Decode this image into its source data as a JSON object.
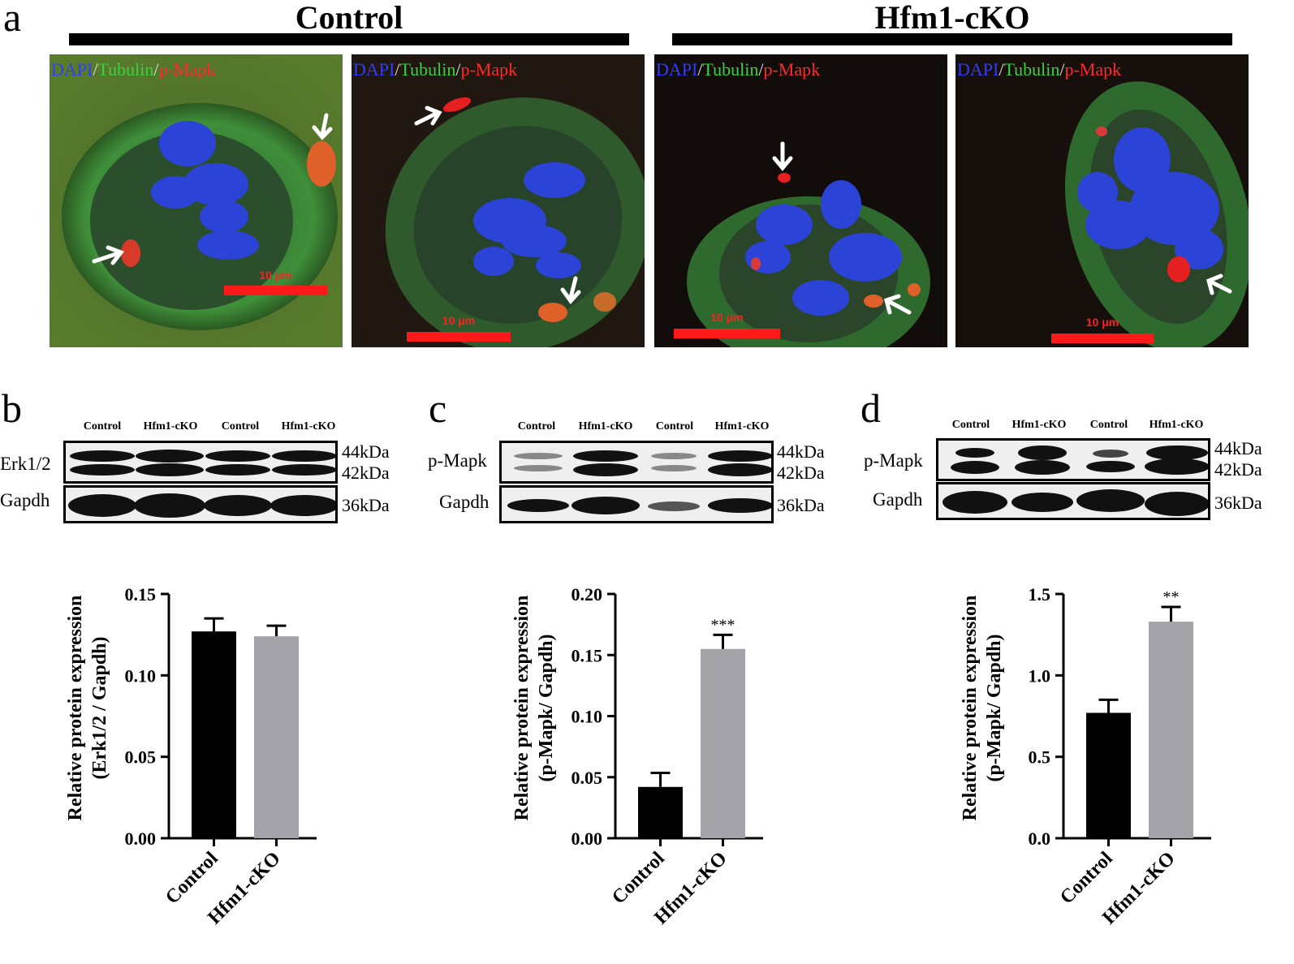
{
  "panel_letters": {
    "a": "a",
    "b": "b",
    "c": "c",
    "d": "d"
  },
  "panel_a": {
    "groups": [
      {
        "title": "Control"
      },
      {
        "title": "Hfm1-cKO"
      }
    ],
    "stain_label": {
      "dapi": "DAPI",
      "sep1": "/",
      "tubulin": "Tubulin",
      "sep2": "/",
      "pmapk": "p-Mapk"
    },
    "scale_bar_text": "10 μm",
    "images": [
      {
        "group": "Control",
        "arrows": 2
      },
      {
        "group": "Control",
        "arrows": 2
      },
      {
        "group": "Hfm1-cKO",
        "arrows": 2
      },
      {
        "group": "Hfm1-cKO",
        "arrows": 1
      }
    ]
  },
  "western_blots": [
    {
      "id": "b",
      "lanes": [
        "Control",
        "Hfm1-cKO",
        "Control",
        "Hfm1-cKO"
      ],
      "rows": [
        {
          "label": "Erk1/2",
          "mw": [
            "44kDa",
            "42kDa"
          ]
        },
        {
          "label": "Gapdh",
          "mw": [
            "36kDa"
          ]
        }
      ]
    },
    {
      "id": "c",
      "lanes": [
        "Control",
        "Hfm1-cKO",
        "Control",
        "Hfm1-cKO"
      ],
      "rows": [
        {
          "label": "p-Mapk",
          "mw": [
            "44kDa",
            "42kDa"
          ]
        },
        {
          "label": "Gapdh",
          "mw": [
            "36kDa"
          ]
        }
      ]
    },
    {
      "id": "d",
      "lanes": [
        "Control",
        "Hfm1-cKO",
        "Control",
        "Hfm1-cKO"
      ],
      "rows": [
        {
          "label": "p-Mapk",
          "mw": [
            "44kDa",
            "42kDa"
          ]
        },
        {
          "label": "Gapdh",
          "mw": [
            "36kDa"
          ]
        }
      ]
    }
  ],
  "chart_data": [
    {
      "id": "b",
      "type": "bar",
      "categories": [
        "Control",
        "Hfm1-cKO"
      ],
      "values": [
        0.127,
        0.124
      ],
      "errors": [
        0.008,
        0.0065
      ],
      "colors": [
        "#000000",
        "#a3a3a9"
      ],
      "ylabel_line1": "Relative protein expression",
      "ylabel_line2": "(Erk1/2 / Gapdh)",
      "ylim": [
        0,
        0.15
      ],
      "yticks": [
        "0.00",
        "0.05",
        "0.10",
        "0.15"
      ],
      "ytick_values": [
        0,
        0.05,
        0.1,
        0.15
      ],
      "significance": ""
    },
    {
      "id": "c",
      "type": "bar",
      "categories": [
        "Control",
        "Hfm1-cKO"
      ],
      "values": [
        0.042,
        0.155
      ],
      "errors": [
        0.0115,
        0.0115
      ],
      "colors": [
        "#000000",
        "#a3a3a9"
      ],
      "ylabel_line1": "Relative protein expression",
      "ylabel_line2": "(p-Mapk/ Gapdh)",
      "ylim": [
        0,
        0.2
      ],
      "yticks": [
        "0.00",
        "0.05",
        "0.10",
        "0.15",
        "0.20"
      ],
      "ytick_values": [
        0,
        0.05,
        0.1,
        0.15,
        0.2
      ],
      "significance": "***"
    },
    {
      "id": "d",
      "type": "bar",
      "categories": [
        "Control",
        "Hfm1-cKO"
      ],
      "values": [
        0.77,
        1.33
      ],
      "errors": [
        0.08,
        0.09
      ],
      "colors": [
        "#000000",
        "#a3a3a9"
      ],
      "ylabel_line1": "Relative protein expression",
      "ylabel_line2": "(p-Mapk/ Gapdh)",
      "ylim": [
        0,
        1.5
      ],
      "yticks": [
        "0.0",
        "0.5",
        "1.0",
        "1.5"
      ],
      "ytick_values": [
        0,
        0.5,
        1.0,
        1.5
      ],
      "significance": "**"
    }
  ],
  "colors": {
    "bar_control": "#000000",
    "bar_cko": "#a3a3a9",
    "scale_bar": "#ff1a1a"
  }
}
